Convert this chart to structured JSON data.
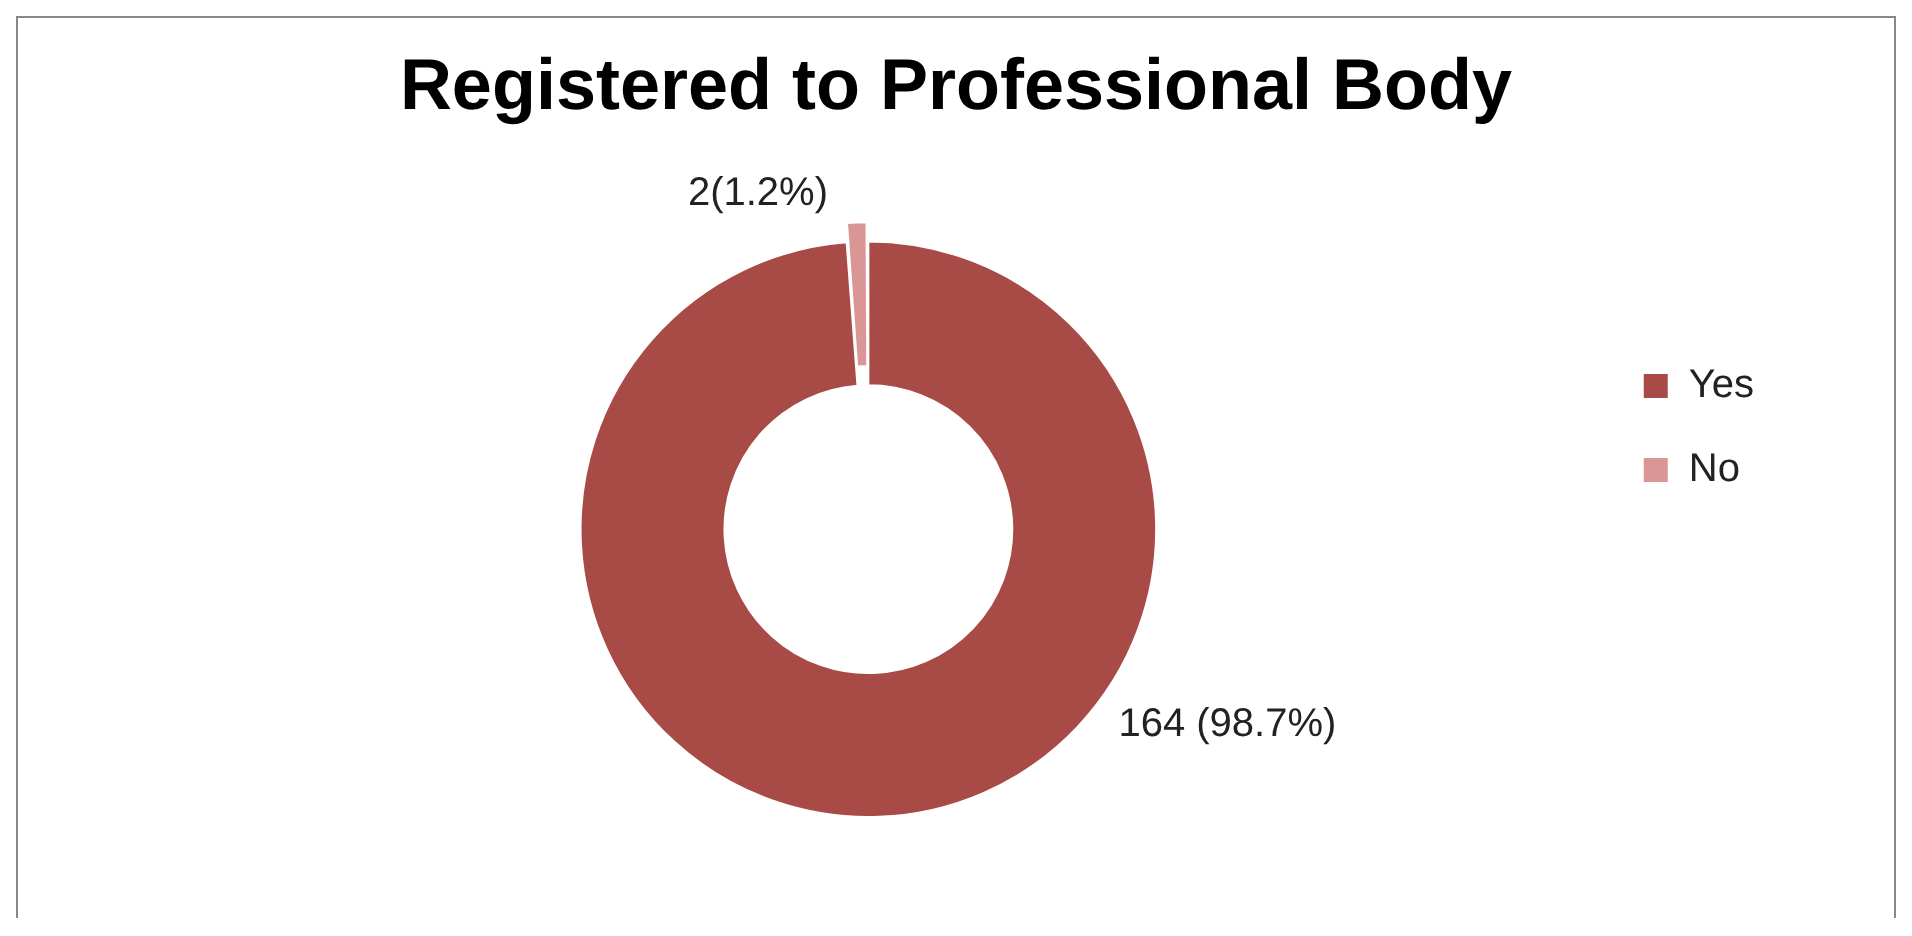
{
  "chart_data": {
    "type": "donut",
    "title": "Registered to Professional Body",
    "categories": [
      "Yes",
      "No"
    ],
    "values": [
      164,
      2
    ],
    "colors": [
      "#a84a45",
      "#d99694"
    ],
    "value_labels": [
      "164 (98.7%)",
      "2(1.2%)"
    ],
    "legend": "right"
  }
}
